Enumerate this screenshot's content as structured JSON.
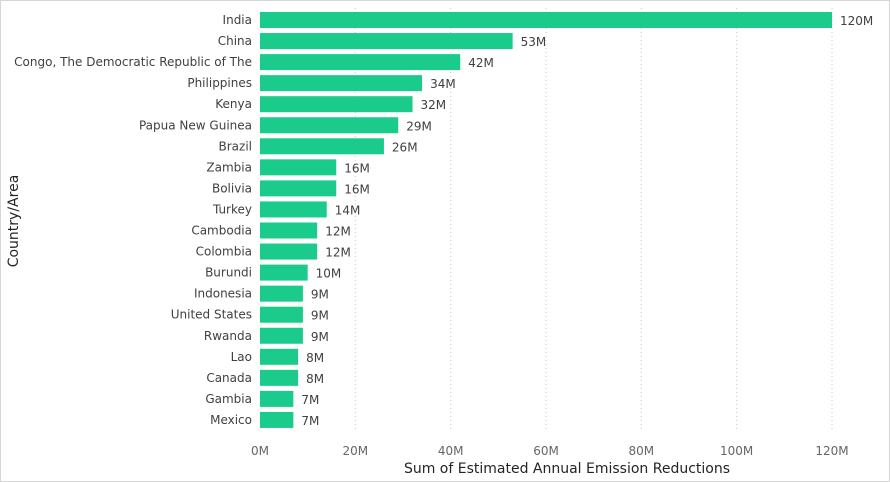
{
  "chart_data": {
    "type": "bar",
    "orientation": "horizontal",
    "xlabel": "Sum of Estimated Annual Emission Reductions",
    "ylabel": "Country/Area",
    "xlim": [
      0,
      120000000
    ],
    "x_ticks": [
      {
        "value": 0,
        "label": "0M"
      },
      {
        "value": 20000000,
        "label": "20M"
      },
      {
        "value": 40000000,
        "label": "40M"
      },
      {
        "value": 60000000,
        "label": "60M"
      },
      {
        "value": 80000000,
        "label": "80M"
      },
      {
        "value": 100000000,
        "label": "100M"
      },
      {
        "value": 120000000,
        "label": "120M"
      }
    ],
    "grid": true,
    "bar_color": "#1ACB8B",
    "categories": [
      "India",
      "China",
      "Congo, The Democratic Republic of The",
      "Philippines",
      "Kenya",
      "Papua New Guinea",
      "Brazil",
      "Zambia",
      "Bolivia",
      "Turkey",
      "Cambodia",
      "Colombia",
      "Burundi",
      "Indonesia",
      "United States",
      "Rwanda",
      "Lao",
      "Canada",
      "Gambia",
      "Mexico"
    ],
    "values": [
      120000000,
      53000000,
      42000000,
      34000000,
      32000000,
      29000000,
      26000000,
      16000000,
      16000000,
      14000000,
      12000000,
      12000000,
      10000000,
      9000000,
      9000000,
      9000000,
      8000000,
      8000000,
      7000000,
      7000000
    ],
    "data_labels": [
      "120M",
      "53M",
      "42M",
      "34M",
      "32M",
      "29M",
      "26M",
      "16M",
      "16M",
      "14M",
      "12M",
      "12M",
      "10M",
      "9M",
      "9M",
      "9M",
      "8M",
      "8M",
      "7M",
      "7M"
    ]
  }
}
